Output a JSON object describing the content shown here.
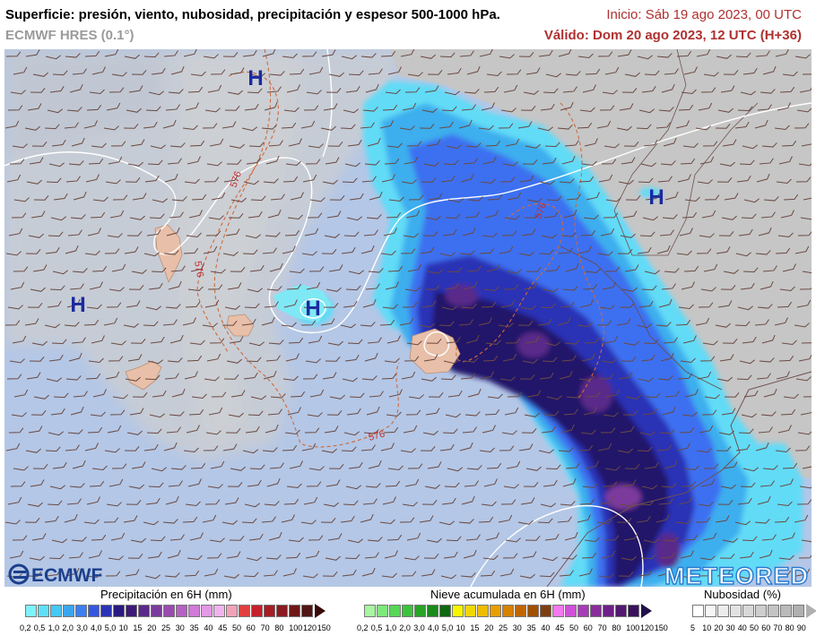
{
  "header": {
    "title": "Superficie: presión, viento, nubosidad, precipitación y espesor 500-1000 hPa.",
    "model": "ECMWF HRES (0.1°)",
    "init": "Inicio: Sáb 19 ago 2023, 00 UTC",
    "valid": "Válido: Dom 20 ago 2023, 12 UTC (H+36)"
  },
  "map": {
    "high_labels": [
      "H",
      "H",
      "H",
      "H"
    ],
    "thickness_labels": [
      "576",
      "576",
      "576",
      "576"
    ],
    "logos": {
      "left": "ECMWF",
      "right": "METEORED"
    },
    "colors": {
      "sea": "#b4c7e6",
      "land": "#c9c9c9",
      "island": "#e8bfa8",
      "thickness": "#d06a3a",
      "high": "#1a2aa0"
    }
  },
  "legends": {
    "precip": {
      "title": "Precipitación en 6H (mm)",
      "colors": [
        "#7ff3fb",
        "#5fe0f7",
        "#45c8f3",
        "#3aa6f0",
        "#3c7ff0",
        "#3557e0",
        "#2c33b5",
        "#2a1a80",
        "#3e1a78",
        "#5a2a8a",
        "#7b3b9c",
        "#9a4bb0",
        "#b660c4",
        "#d17ad8",
        "#e498e6",
        "#f0b4ec",
        "#f2a2b8",
        "#e04040",
        "#c8202a",
        "#a81c24",
        "#8c1a20",
        "#6e1818",
        "#521414"
      ],
      "ticks": [
        "0,2",
        "0,5",
        "1,0",
        "2,0",
        "3,0",
        "4,0",
        "5,0",
        "10",
        "15",
        "20",
        "25",
        "30",
        "35",
        "40",
        "45",
        "50",
        "60",
        "70",
        "80",
        "100",
        "120",
        "150"
      ]
    },
    "snow": {
      "title": "Nieve acumulada en 6H (mm)",
      "colors": [
        "#a8f5a0",
        "#7ee87a",
        "#58d658",
        "#3cc43c",
        "#28a428",
        "#1a8a1a",
        "#0e6a0e",
        "#f6f600",
        "#f2d800",
        "#f0bc00",
        "#e89e00",
        "#d88000",
        "#c06600",
        "#a05000",
        "#7e3e14",
        "#f478f0",
        "#d050d8",
        "#a83cb8",
        "#8a2c9c",
        "#6e2088",
        "#521872",
        "#3a105c"
      ],
      "ticks": [
        "0,2",
        "0,5",
        "1,0",
        "2,0",
        "3,0",
        "4,0",
        "5,0",
        "10",
        "15",
        "20",
        "25",
        "30",
        "35",
        "40",
        "45",
        "50",
        "60",
        "70",
        "80",
        "100",
        "120",
        "150"
      ]
    },
    "cloud": {
      "title": "Nubosidad (%)",
      "colors": [
        "#ffffff",
        "#f6f6f6",
        "#ececec",
        "#e2e2e2",
        "#d8d8d8",
        "#cecece",
        "#c4c4c4",
        "#bababa",
        "#b0b0b0"
      ],
      "ticks": [
        "5",
        "10",
        "20",
        "30",
        "40",
        "50",
        "60",
        "70",
        "80",
        "90"
      ]
    }
  }
}
